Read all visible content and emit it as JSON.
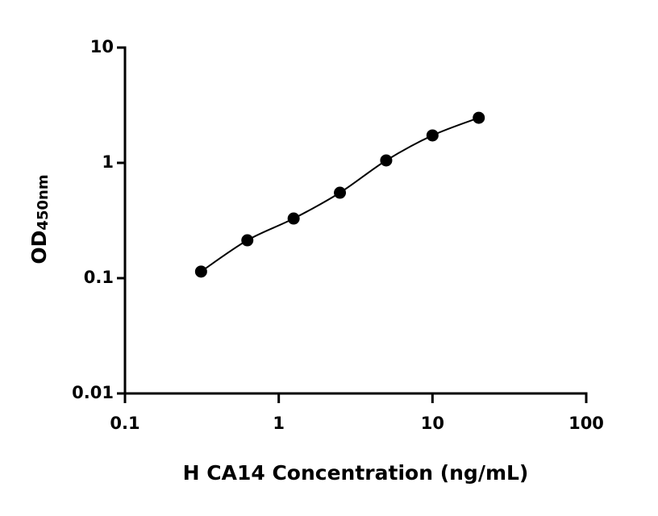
{
  "chart_data": {
    "type": "scatter",
    "xlabel": "H CA14 Concentration (ng/mL)",
    "ylabel": {
      "text": "OD",
      "subscript": "450nm"
    },
    "x": [
      0.3125,
      0.625,
      1.25,
      2.5,
      5,
      10,
      20
    ],
    "series": [
      {
        "color": "#000000",
        "values": [
          0.114,
          0.213,
          0.329,
          0.551,
          1.05,
          1.73,
          2.46
        ]
      }
    ],
    "xlim": [
      0.1,
      100
    ],
    "ylim": [
      0.01,
      10
    ],
    "xticks": [
      0.1,
      1,
      10,
      100
    ],
    "yticks": [
      0.01,
      0.1,
      1,
      10
    ],
    "xscale": "log",
    "yscale": "log",
    "fit_curve": true
  }
}
